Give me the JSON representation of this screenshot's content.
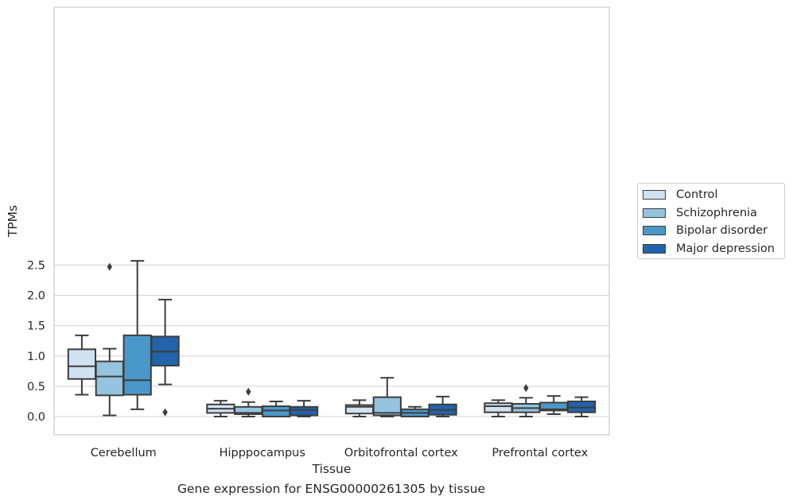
{
  "chart_data": {
    "type": "boxplot",
    "xlabel": "Tissue",
    "ylabel": "TPMs",
    "ylim": [
      -0.12,
      2.72
    ],
    "yticks": [
      "0.0",
      "0.5",
      "1.0",
      "1.5",
      "2.0",
      "2.5"
    ],
    "ytick_values": [
      0.0,
      0.5,
      1.0,
      1.5,
      2.0,
      2.5
    ],
    "grid": "horizontal",
    "legend_placement": "center-right, outside plot",
    "categories": [
      "Cerebellum",
      "Hipppocampus",
      "Orbitofrontal cortex",
      "Prefrontal cortex"
    ],
    "series": [
      {
        "name": "Control",
        "color": "#d0e1f2",
        "boxes": [
          {
            "whislo": 0.36,
            "q1": 0.62,
            "med": 0.83,
            "q3": 1.11,
            "whishi": 1.34,
            "fliers": []
          },
          {
            "whislo": 0.0,
            "q1": 0.06,
            "med": 0.13,
            "q3": 0.2,
            "whishi": 0.26,
            "fliers": []
          },
          {
            "whislo": 0.0,
            "q1": 0.05,
            "med": 0.16,
            "q3": 0.19,
            "whishi": 0.27,
            "fliers": []
          },
          {
            "whislo": 0.0,
            "q1": 0.07,
            "med": 0.17,
            "q3": 0.22,
            "whishi": 0.27,
            "fliers": []
          }
        ]
      },
      {
        "name": "Schizophrenia",
        "color": "#94c4df",
        "boxes": [
          {
            "whislo": 0.02,
            "q1": 0.35,
            "med": 0.66,
            "q3": 0.91,
            "whishi": 1.12,
            "fliers": [
              2.47
            ]
          },
          {
            "whislo": 0.0,
            "q1": 0.04,
            "med": 0.06,
            "q3": 0.16,
            "whishi": 0.24,
            "fliers": [
              0.41
            ]
          },
          {
            "whislo": 0.0,
            "q1": 0.02,
            "med": 0.06,
            "q3": 0.32,
            "whishi": 0.64,
            "fliers": []
          },
          {
            "whislo": 0.0,
            "q1": 0.07,
            "med": 0.14,
            "q3": 0.21,
            "whishi": 0.31,
            "fliers": [
              0.47
            ]
          }
        ]
      },
      {
        "name": "Bipolar disorder",
        "color": "#4a98c9",
        "boxes": [
          {
            "whislo": 0.12,
            "q1": 0.36,
            "med": 0.6,
            "q3": 1.34,
            "whishi": 2.57,
            "fliers": []
          },
          {
            "whislo": 0.0,
            "q1": 0.0,
            "med": 0.1,
            "q3": 0.17,
            "whishi": 0.25,
            "fliers": []
          },
          {
            "whislo": 0.0,
            "q1": 0.0,
            "med": 0.06,
            "q3": 0.12,
            "whishi": 0.16,
            "fliers": []
          },
          {
            "whislo": 0.04,
            "q1": 0.1,
            "med": 0.12,
            "q3": 0.23,
            "whishi": 0.34,
            "fliers": []
          }
        ]
      },
      {
        "name": "Major depression",
        "color": "#2164ab",
        "boxes": [
          {
            "whislo": 0.53,
            "q1": 0.84,
            "med": 1.07,
            "q3": 1.32,
            "whishi": 1.93,
            "fliers": [
              0.07
            ]
          },
          {
            "whislo": 0.0,
            "q1": 0.02,
            "med": 0.11,
            "q3": 0.16,
            "whishi": 0.26,
            "fliers": []
          },
          {
            "whislo": 0.0,
            "q1": 0.03,
            "med": 0.11,
            "q3": 0.2,
            "whishi": 0.33,
            "fliers": []
          },
          {
            "whislo": 0.0,
            "q1": 0.07,
            "med": 0.15,
            "q3": 0.25,
            "whishi": 0.32,
            "fliers": []
          }
        ]
      }
    ]
  },
  "caption": "Gene expression for ENSG00000261305 by tissue"
}
